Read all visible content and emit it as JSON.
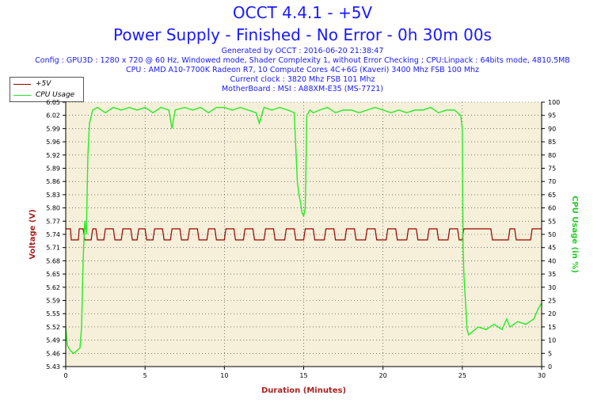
{
  "header": {
    "title": "OCCT 4.4.1 - +5V",
    "subtitle": "Power Supply - Finished - No Error - 0h 30m 00s",
    "generated": "Generated by OCCT : 2016-06-20 21:38:47",
    "config": "Config : GPU3D : 1280 x 720 @ 60 Hz, Windowed mode, Shader Complexity 1, without Error Checking ; CPU:Linpack : 64bits mode, 4810.5MB",
    "cpu": "CPU : AMD A10-7700K Radeon R7, 10 Compute Cores 4C+6G (Kaveri) 3400 Mhz FSB 100 Mhz",
    "clock": "Current clock : 3820 Mhz FSB 101 Mhz",
    "motherboard": "MotherBoard : MSI : A88XM-E35 (MS-7721)"
  },
  "colors": {
    "voltage": "#990000",
    "cpu": "#22ee22",
    "plot_bg": "#f6efd9",
    "title": "#1a1aff",
    "axis_label": "#aa2222",
    "right_label": "#22cc22"
  },
  "chart_data": {
    "type": "line",
    "xlabel": "Duration (Minutes)",
    "ylabel": "Voltage (V)",
    "y2label": "CPU Usage (in %)",
    "xlim": [
      0,
      30
    ],
    "ylim": [
      5.43,
      6.05
    ],
    "y2lim": [
      0,
      100
    ],
    "x_ticks": [
      "0",
      "5",
      "10",
      "15",
      "20",
      "25",
      "30"
    ],
    "y_ticks": [
      "5.43",
      "5.46",
      "5.49",
      "5.52",
      "5.55",
      "5.59",
      "5.62",
      "5.65",
      "5.68",
      "5.71",
      "5.74",
      "5.77",
      "5.80",
      "5.83",
      "5.86",
      "5.89",
      "5.92",
      "5.96",
      "5.99",
      "6.02",
      "6.05"
    ],
    "y2_ticks": [
      "0",
      "5",
      "10",
      "15",
      "20",
      "25",
      "30",
      "35",
      "40",
      "45",
      "50",
      "55",
      "60",
      "65",
      "70",
      "75",
      "80",
      "85",
      "90",
      "95",
      "100"
    ],
    "grid": true,
    "legend_position": "top-left",
    "series": [
      {
        "name": "+5V",
        "axis": "left",
        "levels": [
          5.727,
          5.753
        ],
        "x": [
          0,
          0.3,
          0.35,
          0.8,
          0.85,
          1.1,
          1.2,
          1.6,
          1.7,
          1.9,
          2.0,
          2.4,
          2.5,
          3.0,
          3.1,
          3.5,
          3.6,
          4.1,
          4.2,
          4.5,
          4.6,
          5.0,
          5.1,
          5.5,
          5.6,
          6.1,
          6.2,
          6.6,
          6.7,
          7.2,
          7.3,
          7.7,
          7.8,
          8.3,
          8.4,
          8.9,
          9.0,
          9.4,
          9.5,
          10.0,
          10.1,
          10.6,
          10.7,
          11.2,
          11.3,
          11.8,
          11.9,
          12.5,
          12.6,
          13.1,
          13.2,
          13.8,
          13.9,
          14.4,
          14.5,
          15.0,
          15.1,
          15.6,
          15.7,
          16.3,
          16.4,
          16.9,
          17.0,
          17.6,
          17.7,
          18.2,
          18.3,
          18.9,
          19.0,
          19.5,
          19.6,
          20.2,
          20.3,
          20.8,
          20.9,
          21.5,
          21.6,
          22.1,
          22.2,
          22.8,
          22.9,
          23.4,
          23.5,
          24.1,
          24.2,
          24.7,
          24.8,
          25.0,
          25.1,
          26.8,
          26.9,
          27.9,
          28.0,
          28.3,
          28.4,
          29.3,
          29.4,
          30.0
        ],
        "y": [
          5.753,
          5.753,
          5.727,
          5.727,
          5.753,
          5.753,
          5.727,
          5.727,
          5.753,
          5.753,
          5.727,
          5.727,
          5.753,
          5.753,
          5.727,
          5.727,
          5.753,
          5.753,
          5.727,
          5.727,
          5.753,
          5.753,
          5.727,
          5.727,
          5.753,
          5.753,
          5.727,
          5.727,
          5.753,
          5.753,
          5.727,
          5.727,
          5.753,
          5.753,
          5.727,
          5.727,
          5.753,
          5.753,
          5.727,
          5.727,
          5.753,
          5.753,
          5.727,
          5.727,
          5.753,
          5.753,
          5.727,
          5.727,
          5.753,
          5.753,
          5.727,
          5.727,
          5.753,
          5.753,
          5.727,
          5.727,
          5.753,
          5.753,
          5.727,
          5.727,
          5.753,
          5.753,
          5.727,
          5.727,
          5.753,
          5.753,
          5.727,
          5.727,
          5.753,
          5.753,
          5.727,
          5.727,
          5.753,
          5.753,
          5.727,
          5.727,
          5.753,
          5.753,
          5.727,
          5.727,
          5.753,
          5.753,
          5.727,
          5.727,
          5.753,
          5.753,
          5.727,
          5.727,
          5.753,
          5.753,
          5.727,
          5.727,
          5.753,
          5.753,
          5.727,
          5.727,
          5.753,
          5.753
        ]
      },
      {
        "name": "CPU Usage",
        "axis": "right",
        "x": [
          0,
          0.1,
          0.3,
          0.5,
          0.7,
          0.9,
          1.0,
          1.1,
          1.2,
          1.3,
          1.4,
          1.5,
          1.7,
          2.0,
          2.5,
          3.0,
          3.5,
          4.0,
          4.5,
          5.0,
          5.5,
          6.0,
          6.5,
          6.7,
          6.9,
          7.5,
          8.0,
          8.5,
          9.0,
          9.5,
          10.0,
          10.5,
          11.0,
          11.5,
          12.0,
          12.2,
          12.5,
          13.0,
          13.5,
          14.0,
          14.4,
          14.6,
          14.7,
          14.8,
          14.9,
          15.0,
          15.1,
          15.2,
          15.4,
          15.6,
          16.0,
          16.5,
          17.0,
          17.5,
          18.0,
          18.5,
          19.0,
          19.5,
          20.0,
          20.5,
          21.0,
          21.5,
          22.0,
          22.5,
          23.0,
          23.5,
          24.0,
          24.5,
          24.9,
          25.0,
          25.05,
          25.1,
          25.2,
          25.3,
          25.4,
          25.6,
          26.0,
          26.5,
          27.0,
          27.5,
          27.8,
          28.0,
          28.5,
          29.0,
          29.5,
          29.8,
          30.0
        ],
        "y": [
          15,
          8,
          6,
          5,
          6,
          7,
          15,
          40,
          55,
          50,
          80,
          92,
          97,
          98,
          96,
          98,
          97,
          98,
          97,
          98,
          96,
          98,
          97,
          90,
          97,
          98,
          97,
          98,
          96,
          98,
          98,
          97,
          98,
          97,
          96,
          92,
          98,
          97,
          98,
          97,
          96,
          70,
          65,
          62,
          58,
          57,
          60,
          95,
          97,
          96,
          97,
          98,
          96,
          97,
          97,
          96,
          97,
          98,
          97,
          96,
          97,
          96,
          97,
          97,
          98,
          96,
          97,
          97,
          95,
          90,
          45,
          35,
          25,
          14,
          12,
          13,
          15,
          14,
          16,
          14,
          18,
          15,
          17,
          16,
          18,
          22,
          24
        ]
      }
    ]
  }
}
